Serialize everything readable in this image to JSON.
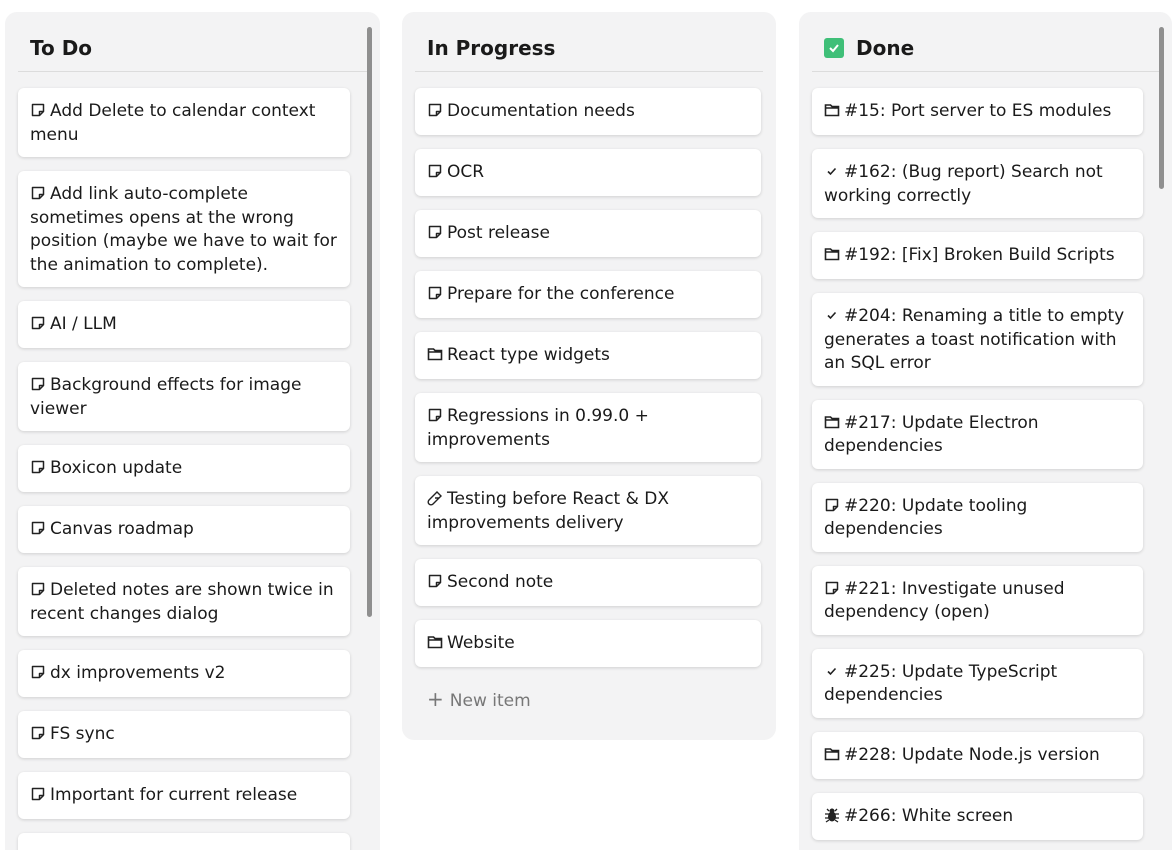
{
  "columns": [
    {
      "title": "To Do",
      "items": [
        {
          "icon": "note",
          "text": "Add Delete to calendar context menu"
        },
        {
          "icon": "note",
          "text": "Add link auto-complete sometimes opens at the wrong position (maybe we have to wait for the animation to complete)."
        },
        {
          "icon": "note",
          "text": "AI / LLM"
        },
        {
          "icon": "note",
          "text": "Background effects for image viewer"
        },
        {
          "icon": "note",
          "text": "Boxicon update"
        },
        {
          "icon": "note",
          "text": "Canvas roadmap"
        },
        {
          "icon": "note",
          "text": "Deleted notes are shown twice in recent changes dialog"
        },
        {
          "icon": "note",
          "text": "dx improvements v2"
        },
        {
          "icon": "note",
          "text": "FS sync"
        },
        {
          "icon": "note",
          "text": "Important for current release"
        },
        {
          "icon": "none",
          "text": ""
        }
      ]
    },
    {
      "title": "In Progress",
      "new_item": "New item",
      "items": [
        {
          "icon": "note",
          "text": "Documentation needs"
        },
        {
          "icon": "note",
          "text": "OCR"
        },
        {
          "icon": "note",
          "text": "Post release"
        },
        {
          "icon": "note",
          "text": "Prepare for the conference"
        },
        {
          "icon": "folder",
          "text": "React type widgets"
        },
        {
          "icon": "note",
          "text": "Regressions in 0.99.0 + improvements"
        },
        {
          "icon": "test-tube",
          "text": "Testing before React & DX improvements delivery"
        },
        {
          "icon": "note",
          "text": "Second note"
        },
        {
          "icon": "folder",
          "text": "Website"
        }
      ]
    },
    {
      "title": "Done",
      "title_icon": "check-box",
      "accent": "#3fbf78",
      "items": [
        {
          "icon": "folder",
          "text": "#15: Port server to ES modules"
        },
        {
          "icon": "check",
          "text": "#162: (Bug report) Search not working correctly"
        },
        {
          "icon": "folder",
          "text": "#192: [Fix] Broken Build Scripts"
        },
        {
          "icon": "check",
          "text": "#204: Renaming a title to empty generates a toast notification with an SQL error"
        },
        {
          "icon": "folder",
          "text": "#217: Update Electron dependencies"
        },
        {
          "icon": "note",
          "text": "#220: Update tooling dependencies"
        },
        {
          "icon": "note",
          "text": "#221: Investigate unused dependency (open)"
        },
        {
          "icon": "check",
          "text": "#225: Update TypeScript dependencies"
        },
        {
          "icon": "folder",
          "text": "#228: Update Node.js version"
        },
        {
          "icon": "bug",
          "text": "#266: White screen"
        }
      ]
    }
  ]
}
